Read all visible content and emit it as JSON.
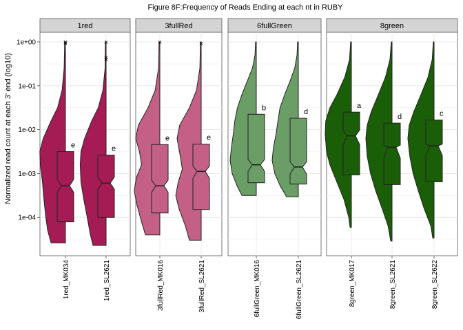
{
  "chart_data": {
    "type": "violin-box",
    "title": "Figure 8F:Frequency of Reads Ending at each nt in RUBY",
    "ylabel": "Normalized read count at each 3' end (log10)",
    "xlabel": "",
    "y_scale": "log10",
    "ylim": [
      1e-05,
      1
    ],
    "y_ticks": [
      {
        "value": 1,
        "label": "1e+00"
      },
      {
        "value": 0.1,
        "label": "1e-01"
      },
      {
        "value": 0.01,
        "label": "1e-02"
      },
      {
        "value": 0.001,
        "label": "1e-03"
      },
      {
        "value": 0.0001,
        "label": "1e-04"
      }
    ],
    "grid": true,
    "facets": [
      {
        "name": "1red",
        "color": "#A51C54",
        "series": [
          {
            "name": "1red_MK034",
            "min": 2.63e-05,
            "q1": 7.94e-05,
            "median": 0.000525,
            "q3": 0.00316,
            "max": 1,
            "notch": [
              0.000372,
              0.000741
            ],
            "letter": "e",
            "outliers": [
              1,
              0.955
            ],
            "violin_min": 2.63e-05,
            "violin_max": 1,
            "density": [
              [
                -4.58,
                0.55
              ],
              [
                -4.3,
                0.68
              ],
              [
                -4.0,
                0.75
              ],
              [
                -3.6,
                0.82
              ],
              [
                -3.2,
                0.88
              ],
              [
                -2.8,
                0.96
              ],
              [
                -2.5,
                0.98
              ],
              [
                -2.2,
                0.85
              ],
              [
                -1.8,
                0.55
              ],
              [
                -1.5,
                0.3
              ],
              [
                -1.1,
                0.13
              ],
              [
                -0.6,
                0.05
              ],
              [
                0,
                0.03
              ]
            ]
          },
          {
            "name": "1red_SL2621",
            "min": 2.29e-05,
            "q1": 0.0001,
            "median": 0.000603,
            "q3": 0.00263,
            "max": 0.229,
            "notch": [
              0.000437,
              0.000832
            ],
            "letter": "e",
            "outliers": [
              1,
              0.447,
              0.398
            ],
            "violin_min": 2.29e-05,
            "violin_max": 1,
            "density": [
              [
                -4.64,
                0.5
              ],
              [
                -4.4,
                0.6
              ],
              [
                -4.0,
                0.72
              ],
              [
                -3.6,
                0.85
              ],
              [
                -3.2,
                0.96
              ],
              [
                -2.8,
                0.99
              ],
              [
                -2.5,
                0.96
              ],
              [
                -2.2,
                0.82
              ],
              [
                -1.8,
                0.55
              ],
              [
                -1.5,
                0.3
              ],
              [
                -1.1,
                0.12
              ],
              [
                -0.6,
                0.04
              ],
              [
                0,
                0.03
              ]
            ]
          }
        ]
      },
      {
        "name": "3fullRed",
        "color": "#C45F85",
        "series": [
          {
            "name": "3fullRed_MK016",
            "min": 3.98e-05,
            "q1": 0.000126,
            "median": 0.000525,
            "q3": 0.00457,
            "max": 1,
            "notch": [
              0.000372,
              0.000708
            ],
            "letter": "e",
            "outliers": [
              1
            ],
            "violin_min": 3.98e-05,
            "violin_max": 1,
            "density": [
              [
                -4.4,
                0.55
              ],
              [
                -4.1,
                0.7
              ],
              [
                -3.7,
                0.88
              ],
              [
                -3.4,
                0.98
              ],
              [
                -3.1,
                0.9
              ],
              [
                -2.8,
                0.7
              ],
              [
                -2.5,
                0.78
              ],
              [
                -2.2,
                0.92
              ],
              [
                -1.9,
                0.82
              ],
              [
                -1.5,
                0.45
              ],
              [
                -1.1,
                0.18
              ],
              [
                -0.6,
                0.05
              ],
              [
                0,
                0.03
              ]
            ]
          },
          {
            "name": "3fullRed_SL2621",
            "min": 3.02e-05,
            "q1": 0.000151,
            "median": 0.00112,
            "q3": 0.00468,
            "max": 0.933,
            "notch": [
              0.000776,
              0.00148
            ],
            "letter": "e",
            "outliers": [
              0.933
            ],
            "violin_min": 3.02e-05,
            "violin_max": 1,
            "density": [
              [
                -4.52,
                0.45
              ],
              [
                -4.2,
                0.6
              ],
              [
                -3.8,
                0.85
              ],
              [
                -3.5,
                0.97
              ],
              [
                -3.2,
                0.88
              ],
              [
                -2.9,
                0.72
              ],
              [
                -2.6,
                0.8
              ],
              [
                -2.2,
                0.92
              ],
              [
                -1.9,
                0.82
              ],
              [
                -1.5,
                0.45
              ],
              [
                -1.1,
                0.18
              ],
              [
                -0.6,
                0.05
              ],
              [
                0,
                0.03
              ]
            ]
          }
        ]
      },
      {
        "name": "6fullGreen",
        "color": "#6B9E67",
        "series": [
          {
            "name": "6fullGreen_MK016",
            "min": 0.000316,
            "q1": 0.000617,
            "median": 0.00158,
            "q3": 0.0224,
            "max": 1,
            "notch": [
              0.00112,
              0.00209
            ],
            "letter": "b",
            "outliers": [],
            "violin_min": 0.000316,
            "violin_max": 1,
            "density": [
              [
                -3.5,
                0.55
              ],
              [
                -3.3,
                0.72
              ],
              [
                -3.0,
                0.92
              ],
              [
                -2.7,
                1.0
              ],
              [
                -2.4,
                0.95
              ],
              [
                -2.1,
                0.88
              ],
              [
                -1.8,
                0.82
              ],
              [
                -1.5,
                0.72
              ],
              [
                -1.2,
                0.55
              ],
              [
                -0.9,
                0.35
              ],
              [
                -0.6,
                0.15
              ],
              [
                -0.3,
                0.05
              ],
              [
                0,
                0.03
              ]
            ]
          },
          {
            "name": "6fullGreen_SL2621",
            "min": 0.000295,
            "q1": 0.000575,
            "median": 0.00141,
            "q3": 0.0182,
            "max": 1,
            "notch": [
              0.000955,
              0.00186
            ],
            "letter": "d",
            "outliers": [],
            "violin_min": 0.000295,
            "violin_max": 1,
            "density": [
              [
                -3.53,
                0.45
              ],
              [
                -3.3,
                0.68
              ],
              [
                -3.0,
                0.9
              ],
              [
                -2.7,
                1.0
              ],
              [
                -2.4,
                0.95
              ],
              [
                -2.1,
                0.85
              ],
              [
                -1.8,
                0.78
              ],
              [
                -1.5,
                0.7
              ],
              [
                -1.2,
                0.52
              ],
              [
                -0.9,
                0.32
              ],
              [
                -0.6,
                0.14
              ],
              [
                -0.3,
                0.05
              ],
              [
                0,
                0.03
              ]
            ]
          }
        ]
      },
      {
        "name": "8green",
        "color": "#1B5E08",
        "series": [
          {
            "name": "8green_MK017",
            "min": 5.89e-05,
            "q1": 0.000933,
            "median": 0.00724,
            "q3": 0.0251,
            "max": 1,
            "notch": [
              0.00457,
              0.0098
            ],
            "letter": "a",
            "outliers": [],
            "violin_min": 5.89e-05,
            "violin_max": 1,
            "density": [
              [
                -4.23,
                0.05
              ],
              [
                -4.0,
                0.1
              ],
              [
                -3.6,
                0.28
              ],
              [
                -3.2,
                0.55
              ],
              [
                -2.8,
                0.82
              ],
              [
                -2.5,
                0.95
              ],
              [
                -2.1,
                1.0
              ],
              [
                -1.8,
                0.98
              ],
              [
                -1.5,
                0.82
              ],
              [
                -1.2,
                0.55
              ],
              [
                -0.8,
                0.25
              ],
              [
                -0.4,
                0.07
              ],
              [
                0,
                0.03
              ]
            ]
          },
          {
            "name": "8green_SL2621",
            "min": 2.88e-05,
            "q1": 0.000562,
            "median": 0.00398,
            "q3": 0.0141,
            "max": 1,
            "notch": [
              0.00224,
              0.00447
            ],
            "letter": "d",
            "outliers": [],
            "violin_min": 2.88e-05,
            "violin_max": 1,
            "density": [
              [
                -4.54,
                0.05
              ],
              [
                -4.2,
                0.15
              ],
              [
                -3.8,
                0.38
              ],
              [
                -3.4,
                0.62
              ],
              [
                -3.0,
                0.82
              ],
              [
                -2.6,
                0.95
              ],
              [
                -2.2,
                1.0
              ],
              [
                -1.9,
                0.95
              ],
              [
                -1.6,
                0.8
              ],
              [
                -1.2,
                0.52
              ],
              [
                -0.8,
                0.25
              ],
              [
                -0.4,
                0.08
              ],
              [
                0,
                0.03
              ]
            ]
          },
          {
            "name": "8green_SL2622",
            "min": 3.39e-05,
            "q1": 0.000646,
            "median": 0.00427,
            "q3": 0.0166,
            "max": 1,
            "notch": [
              0.00257,
              0.00468
            ],
            "letter": "c",
            "outliers": [],
            "violin_min": 3.39e-05,
            "violin_max": 1,
            "density": [
              [
                -4.47,
                0.05
              ],
              [
                -4.2,
                0.12
              ],
              [
                -3.8,
                0.38
              ],
              [
                -3.4,
                0.6
              ],
              [
                -3.0,
                0.8
              ],
              [
                -2.6,
                0.93
              ],
              [
                -2.2,
                1.0
              ],
              [
                -1.9,
                0.95
              ],
              [
                -1.6,
                0.78
              ],
              [
                -1.2,
                0.5
              ],
              [
                -0.8,
                0.23
              ],
              [
                -0.4,
                0.07
              ],
              [
                0,
                0.03
              ]
            ]
          }
        ]
      }
    ]
  }
}
